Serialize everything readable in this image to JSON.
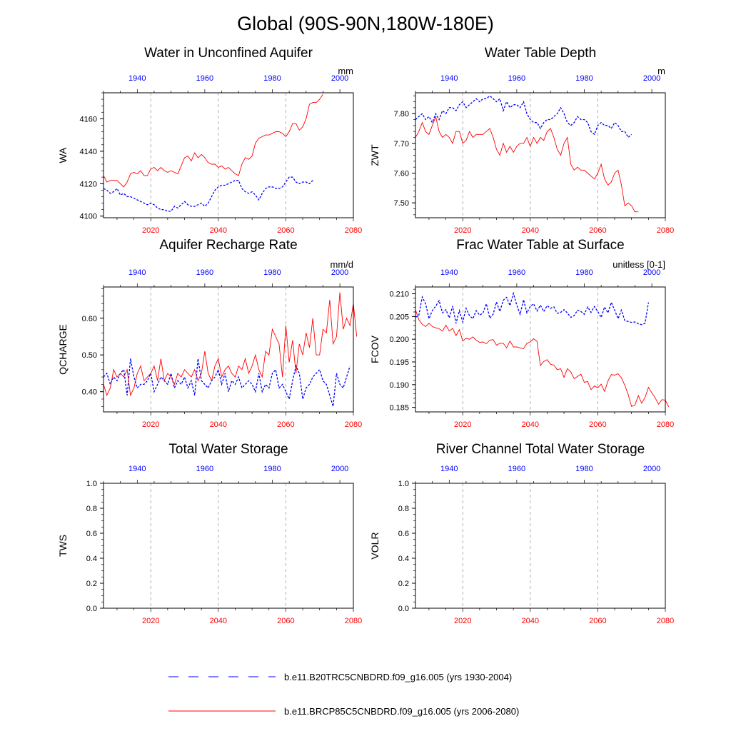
{
  "figure": {
    "title": "Global (90S-90N,180W-180E)",
    "legend": [
      {
        "label": "b.e11.B20TRC5CNBDRD.f09_g16.005 (yrs 1930-2004)",
        "color": "#0000ff",
        "dash": true
      },
      {
        "label": "b.e11.BRCP85C5CNBDRD.f09_g16.005 (yrs 2006-2080)",
        "color": "#ff0000",
        "dash": false
      }
    ],
    "colors": {
      "historical": "#0000ff",
      "future": "#ff0000",
      "grid": "#9a9a9a",
      "axis": "#000000"
    }
  },
  "chart_data": [
    {
      "type": "line",
      "title": "Water in Unconfined Aquifer",
      "units": "mm",
      "ylabel": "WA",
      "ylim": [
        4099,
        4176
      ],
      "yticks": [
        4100,
        4120,
        4140,
        4160
      ],
      "ytick_labels": [
        "4100",
        "4120",
        "4140",
        "4160"
      ],
      "yminor": 5,
      "xlim_bottom": [
        2006,
        2080
      ],
      "xticks_bottom": [
        2020,
        2040,
        2060,
        2080
      ],
      "xlim_top": [
        1930,
        2004
      ],
      "xticks_top": [
        1940,
        1960,
        1980,
        2000
      ],
      "grid_x": [
        2020,
        2040,
        2060
      ],
      "series": [
        {
          "name": "b.e11.B20TRC5CNBDRD.f09_g16.005",
          "axis": "top",
          "x_start": 1930,
          "values": [
            4117,
            4116,
            4114,
            4115,
            4117,
            4113,
            4114,
            4112,
            4112,
            4111,
            4110,
            4109,
            4108,
            4107,
            4108,
            4107,
            4105,
            4104,
            4104,
            4103,
            4103,
            4106,
            4105,
            4107,
            4109,
            4107,
            4106,
            4106,
            4107,
            4108,
            4106,
            4108,
            4112,
            4116,
            4118,
            4119,
            4119,
            4120,
            4121,
            4122,
            4122,
            4117,
            4115,
            4114,
            4115,
            4113,
            4110,
            4114,
            4117,
            4118,
            4118,
            4117,
            4117,
            4118,
            4121,
            4124,
            4124,
            4121,
            4120,
            4121,
            4121,
            4120,
            4122
          ]
        },
        {
          "name": "b.e11.BRCP85C5CNBDRD.f09_g16.005",
          "axis": "bottom",
          "x_start": 2006,
          "values": [
            4125,
            4121,
            4122,
            4122,
            4122,
            4120,
            4118,
            4121,
            4126,
            4127,
            4126,
            4128,
            4125,
            4125,
            4129,
            4130,
            4128,
            4130,
            4128,
            4127,
            4128,
            4127,
            4126,
            4131,
            4136,
            4137,
            4134,
            4139,
            4136,
            4138,
            4136,
            4133,
            4132,
            4132,
            4130,
            4131,
            4129,
            4130,
            4128,
            4126,
            4125,
            4132,
            4136,
            4135,
            4137,
            4145,
            4148,
            4149,
            4150,
            4150,
            4151,
            4152,
            4152,
            4151,
            4149,
            4152,
            4157,
            4157,
            4153,
            4155,
            4160,
            4169,
            4170,
            4170,
            4172,
            4175
          ]
        }
      ]
    },
    {
      "type": "line",
      "title": "Water Table Depth",
      "units": "m",
      "ylabel": "ZWT",
      "ylim": [
        7.45,
        7.87
      ],
      "yticks": [
        7.5,
        7.6,
        7.7,
        7.8
      ],
      "ytick_labels": [
        "7.50",
        "7.60",
        "7.70",
        "7.80"
      ],
      "yminor": 5,
      "xlim_bottom": [
        2006,
        2080
      ],
      "xticks_bottom": [
        2020,
        2040,
        2060,
        2080
      ],
      "xlim_top": [
        1930,
        2004
      ],
      "xticks_top": [
        1940,
        1960,
        1980,
        2000
      ],
      "grid_x": [
        2020,
        2040,
        2060
      ],
      "series": [
        {
          "name": "b.e11.B20TRC5CNBDRD.f09_g16.005",
          "axis": "top",
          "x_start": 1930,
          "values": [
            7.78,
            7.79,
            7.8,
            7.78,
            7.79,
            7.77,
            7.8,
            7.78,
            7.81,
            7.8,
            7.82,
            7.82,
            7.81,
            7.83,
            7.84,
            7.82,
            7.83,
            7.84,
            7.85,
            7.84,
            7.85,
            7.85,
            7.86,
            7.85,
            7.84,
            7.85,
            7.81,
            7.84,
            7.82,
            7.83,
            7.83,
            7.82,
            7.84,
            7.8,
            7.78,
            7.77,
            7.77,
            7.75,
            7.77,
            7.78,
            7.78,
            7.79,
            7.8,
            7.82,
            7.8,
            7.77,
            7.76,
            7.77,
            7.79,
            7.78,
            7.78,
            7.77,
            7.74,
            7.73,
            7.76,
            7.77,
            7.76,
            7.76,
            7.75,
            7.77,
            7.76,
            7.74,
            7.74,
            7.72,
            7.73
          ]
        },
        {
          "name": "b.e11.BRCP85C5CNBDRD.f09_g16.005",
          "axis": "bottom",
          "x_start": 2006,
          "values": [
            7.72,
            7.74,
            7.77,
            7.74,
            7.73,
            7.76,
            7.79,
            7.74,
            7.72,
            7.73,
            7.72,
            7.7,
            7.74,
            7.74,
            7.7,
            7.71,
            7.74,
            7.72,
            7.73,
            7.73,
            7.73,
            7.74,
            7.75,
            7.72,
            7.68,
            7.66,
            7.7,
            7.67,
            7.69,
            7.67,
            7.69,
            7.7,
            7.7,
            7.72,
            7.69,
            7.72,
            7.7,
            7.72,
            7.71,
            7.74,
            7.75,
            7.72,
            7.68,
            7.66,
            7.7,
            7.72,
            7.63,
            7.61,
            7.62,
            7.61,
            7.61,
            7.6,
            7.59,
            7.58,
            7.6,
            7.63,
            7.58,
            7.56,
            7.57,
            7.6,
            7.61,
            7.56,
            7.49,
            7.5,
            7.49,
            7.47,
            7.47
          ]
        }
      ]
    },
    {
      "type": "line",
      "title": "Aquifer Recharge Rate",
      "units": "mm/d",
      "ylabel": "QCHARGE",
      "ylim": [
        0.345,
        0.685
      ],
      "yticks": [
        0.4,
        0.5,
        0.6
      ],
      "ytick_labels": [
        "0.40",
        "0.50",
        "0.60"
      ],
      "yminor": 5,
      "xlim_bottom": [
        2006,
        2080
      ],
      "xticks_bottom": [
        2020,
        2040,
        2060,
        2080
      ],
      "xlim_top": [
        1930,
        2004
      ],
      "xticks_top": [
        1940,
        1960,
        1980,
        2000
      ],
      "grid_x": [
        2020,
        2040,
        2060
      ],
      "series": [
        {
          "name": "b.e11.B20TRC5CNBDRD.f09_g16.005",
          "axis": "top",
          "x_start": 1930,
          "values": [
            0.44,
            0.45,
            0.42,
            0.44,
            0.43,
            0.45,
            0.46,
            0.39,
            0.49,
            0.44,
            0.41,
            0.42,
            0.42,
            0.43,
            0.45,
            0.4,
            0.42,
            0.44,
            0.43,
            0.42,
            0.45,
            0.41,
            0.43,
            0.42,
            0.44,
            0.41,
            0.43,
            0.39,
            0.49,
            0.43,
            0.42,
            0.41,
            0.43,
            0.44,
            0.46,
            0.42,
            0.45,
            0.4,
            0.43,
            0.42,
            0.44,
            0.41,
            0.42,
            0.43,
            0.42,
            0.4,
            0.45,
            0.4,
            0.42,
            0.41,
            0.45,
            0.46,
            0.41,
            0.42,
            0.4,
            0.38,
            0.43,
            0.47,
            0.45,
            0.38,
            0.41,
            0.42,
            0.44,
            0.45,
            0.46,
            0.43,
            0.42,
            0.39,
            0.36,
            0.45,
            0.42,
            0.41,
            0.44,
            0.47
          ]
        },
        {
          "name": "b.e11.BRCP85C5CNBDRD.f09_g16.005",
          "axis": "bottom",
          "x_start": 2006,
          "values": [
            0.42,
            0.39,
            0.41,
            0.46,
            0.44,
            0.45,
            0.44,
            0.46,
            0.39,
            0.41,
            0.45,
            0.47,
            0.43,
            0.44,
            0.45,
            0.47,
            0.43,
            0.49,
            0.43,
            0.45,
            0.44,
            0.42,
            0.45,
            0.44,
            0.46,
            0.45,
            0.44,
            0.46,
            0.43,
            0.45,
            0.51,
            0.45,
            0.43,
            0.47,
            0.49,
            0.44,
            0.46,
            0.47,
            0.45,
            0.44,
            0.47,
            0.46,
            0.49,
            0.45,
            0.47,
            0.5,
            0.46,
            0.44,
            0.51,
            0.5,
            0.57,
            0.55,
            0.53,
            0.44,
            0.58,
            0.48,
            0.54,
            0.45,
            0.53,
            0.5,
            0.56,
            0.52,
            0.6,
            0.5,
            0.5,
            0.57,
            0.56,
            0.65,
            0.53,
            0.55,
            0.67,
            0.57,
            0.6,
            0.58,
            0.64,
            0.55
          ]
        }
      ]
    },
    {
      "type": "line",
      "title": "Frac Water Table at Surface",
      "units": "unitless [0-1]",
      "ylabel": "FCOV",
      "ylim": [
        0.184,
        0.2115
      ],
      "yticks": [
        0.185,
        0.19,
        0.195,
        0.2,
        0.205,
        0.21
      ],
      "ytick_labels": [
        "0.185",
        "0.190",
        "0.195",
        "0.200",
        "0.205",
        "0.210"
      ],
      "yminor": 5,
      "xlim_bottom": [
        2006,
        2080
      ],
      "xticks_bottom": [
        2020,
        2040,
        2060,
        2080
      ],
      "xlim_top": [
        1930,
        2004
      ],
      "xticks_top": [
        1940,
        1960,
        1980,
        2000
      ],
      "grid_x": [
        2020,
        2040,
        2060
      ],
      "series": [
        {
          "name": "b.e11.B20TRC5CNBDRD.f09_g16.005",
          "axis": "top",
          "x_start": 1930,
          "values": [
            0.2048,
            0.2053,
            0.2093,
            0.2078,
            0.2045,
            0.2063,
            0.2073,
            0.2085,
            0.2058,
            0.2065,
            0.2047,
            0.2073,
            0.2035,
            0.2063,
            0.2038,
            0.2068,
            0.2052,
            0.2045,
            0.2063,
            0.2053,
            0.2058,
            0.2078,
            0.2046,
            0.2055,
            0.2082,
            0.2061,
            0.2086,
            0.2092,
            0.2074,
            0.2101,
            0.2075,
            0.2055,
            0.2087,
            0.2058,
            0.2072,
            0.2078,
            0.2062,
            0.2075,
            0.2061,
            0.2074,
            0.2068,
            0.2071,
            0.2057,
            0.2059,
            0.2065,
            0.2058,
            0.2048,
            0.2052,
            0.2064,
            0.2061,
            0.2055,
            0.2071,
            0.2059,
            0.2072,
            0.2061,
            0.2048,
            0.2071,
            0.2058,
            0.2081,
            0.2064,
            0.2045,
            0.2064,
            0.2041,
            0.2039,
            0.2037,
            0.2038,
            0.2034,
            0.2032,
            0.2035,
            0.2081
          ]
        },
        {
          "name": "b.e11.BRCP85C5CNBDRD.f09_g16.005",
          "axis": "bottom",
          "x_start": 2006,
          "values": [
            0.2065,
            0.2043,
            0.2033,
            0.2028,
            0.2035,
            0.2028,
            0.2025,
            0.2023,
            0.2018,
            0.2031,
            0.2018,
            0.2024,
            0.2008,
            0.2021,
            0.1996,
            0.2002,
            0.2,
            0.2005,
            0.1998,
            0.1993,
            0.1994,
            0.199,
            0.1998,
            0.1999,
            0.1987,
            0.1991,
            0.1991,
            0.1981,
            0.1996,
            0.1983,
            0.1983,
            0.1981,
            0.1979,
            0.1991,
            0.1994,
            0.2001,
            0.1995,
            0.1942,
            0.1951,
            0.1955,
            0.1945,
            0.1943,
            0.1933,
            0.1935,
            0.1916,
            0.1935,
            0.1928,
            0.1913,
            0.1918,
            0.1923,
            0.1905,
            0.1907,
            0.1889,
            0.1897,
            0.1893,
            0.1901,
            0.1885,
            0.1908,
            0.1922,
            0.1921,
            0.1924,
            0.1915,
            0.1899,
            0.1878,
            0.1852,
            0.1855,
            0.1876,
            0.1859,
            0.1872,
            0.1894,
            0.1882,
            0.1871,
            0.1857,
            0.1867,
            0.1866,
            0.1851
          ]
        }
      ]
    },
    {
      "type": "line",
      "title": "Total Water Storage",
      "units": "",
      "ylabel": "TWS",
      "ylim": [
        0,
        1
      ],
      "yticks": [
        0,
        0.2,
        0.4,
        0.6,
        0.8,
        1.0
      ],
      "ytick_labels": [
        "0.0",
        "0.2",
        "0.4",
        "0.6",
        "0.8",
        "1.0"
      ],
      "yminor": 4,
      "xlim_bottom": [
        2006,
        2080
      ],
      "xticks_bottom": [
        2020,
        2040,
        2060,
        2080
      ],
      "xlim_top": [
        1930,
        2004
      ],
      "xticks_top": [
        1940,
        1960,
        1980,
        2000
      ],
      "grid_x": [
        2020,
        2040,
        2060
      ],
      "series": []
    },
    {
      "type": "line",
      "title": "River Channel Total Water Storage",
      "units": "",
      "ylabel": "VOLR",
      "ylim": [
        0,
        1
      ],
      "yticks": [
        0,
        0.2,
        0.4,
        0.6,
        0.8,
        1.0
      ],
      "ytick_labels": [
        "0.0",
        "0.2",
        "0.4",
        "0.6",
        "0.8",
        "1.0"
      ],
      "yminor": 4,
      "xlim_bottom": [
        2006,
        2080
      ],
      "xticks_bottom": [
        2020,
        2040,
        2060,
        2080
      ],
      "xlim_top": [
        1930,
        2004
      ],
      "xticks_top": [
        1940,
        1960,
        1980,
        2000
      ],
      "grid_x": [
        2020,
        2040,
        2060
      ],
      "series": []
    }
  ]
}
